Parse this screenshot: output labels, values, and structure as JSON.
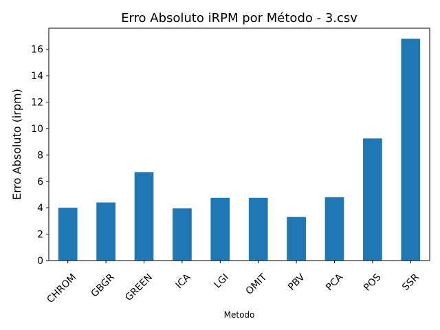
{
  "chart_data": {
    "type": "bar",
    "title": "Erro Absoluto iRPM por Método - 3.csv",
    "xlabel": "Metodo",
    "ylabel": "Erro Absoluto (irpm)",
    "categories": [
      "CHROM",
      "GBGR",
      "GREEN",
      "ICA",
      "LGI",
      "OMIT",
      "PBV",
      "PCA",
      "POS",
      "SSR"
    ],
    "values": [
      4.0,
      4.4,
      6.7,
      3.95,
      4.75,
      4.75,
      3.3,
      4.8,
      9.25,
      16.8
    ],
    "ylim": [
      0,
      17.6
    ],
    "yticks": [
      0,
      2,
      4,
      6,
      8,
      10,
      12,
      14,
      16
    ],
    "bar_color": "#1f77b4",
    "grid": false,
    "legend": false
  }
}
